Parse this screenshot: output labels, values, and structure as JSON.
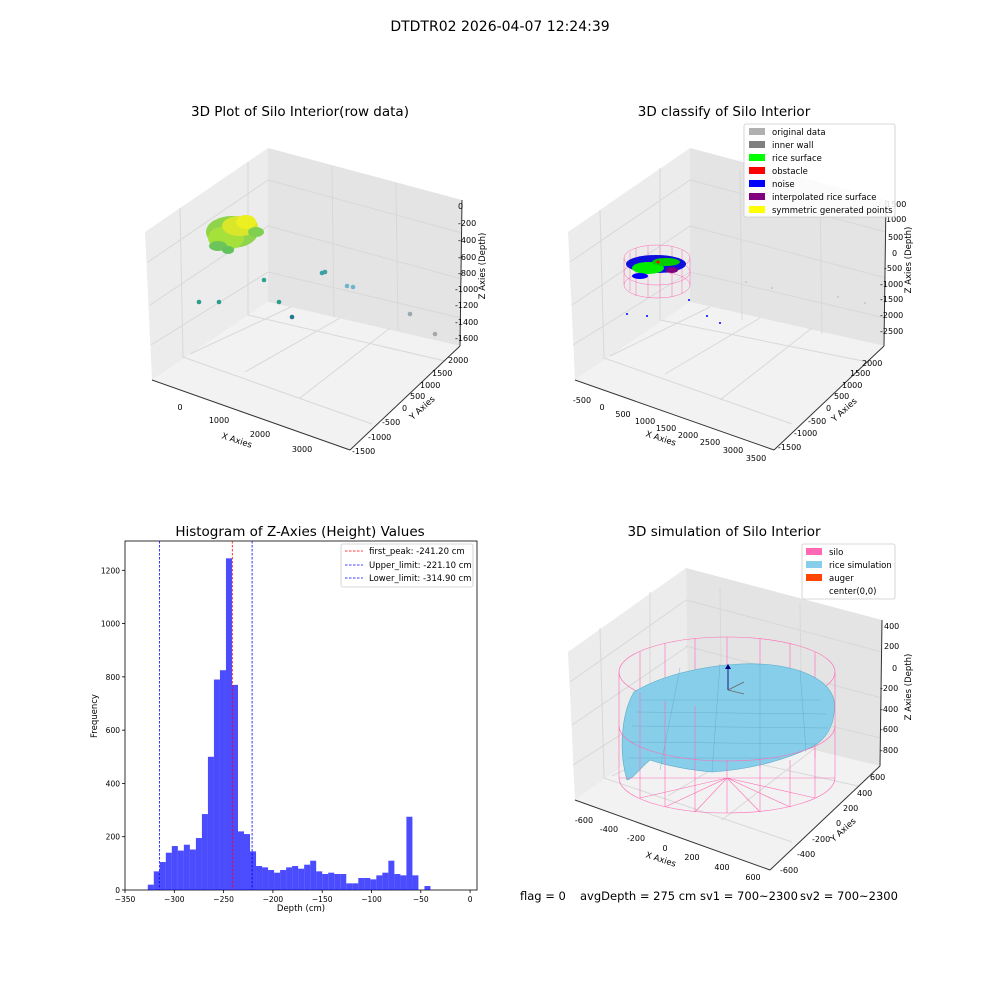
{
  "figure": {
    "suptitle": "DTDTR02 2026-04-07 12:24:39",
    "footer": {
      "flag": "flag = 0",
      "avg": "avgDepth = 275 cm",
      "sv1": "sv1 = 700~2300",
      "sv2": "sv2 = 700~2300"
    }
  },
  "panels": {
    "raw": {
      "title": "3D Plot of Silo Interior(row data)",
      "xlabel": "X Axies",
      "ylabel": "Y Axies",
      "zlabel": "Z Axies (Depth)",
      "xticks": [
        "0",
        "1000",
        "2000",
        "3000"
      ],
      "yticks": [
        "2000",
        "1500",
        "1000",
        "500",
        "0",
        "-500",
        "-1000",
        "-1500"
      ],
      "zticks": [
        "0",
        "-200",
        "-400",
        "-600",
        "-800",
        "-1000",
        "-1200",
        "-1400",
        "-1600"
      ]
    },
    "classify": {
      "title": "3D classify of Silo Interior",
      "xlabel": "X Axies",
      "ylabel": "Y Axies",
      "zlabel": "Z Axies (Depth)",
      "xticks": [
        "-500",
        "0",
        "500",
        "1000",
        "1500",
        "2000",
        "2500",
        "3000",
        "3500"
      ],
      "yticks": [
        "2000",
        "1500",
        "1000",
        "500",
        "0",
        "-500",
        "-1000",
        "-1500"
      ],
      "zticks": [
        "1500",
        "1000",
        "500",
        "0",
        "-500",
        "-1000",
        "-1500",
        "-2000",
        "-2500"
      ],
      "legend": [
        {
          "label": "original data",
          "color": "#b0b0b0"
        },
        {
          "label": "inner wall",
          "color": "#808080"
        },
        {
          "label": "rice surface",
          "color": "#00ff00"
        },
        {
          "label": "obstacle",
          "color": "#ff0000"
        },
        {
          "label": "noise",
          "color": "#0000ff"
        },
        {
          "label": "interpolated rice surface",
          "color": "#800080"
        },
        {
          "label": "symmetric generated points",
          "color": "#ffff00"
        }
      ]
    },
    "simulation": {
      "title": "3D simulation of Silo Interior",
      "xlabel": "X Axies",
      "ylabel": "Y Axies",
      "zlabel": "Z Axies (Depth)",
      "xticks": [
        "-600",
        "-400",
        "-200",
        "0",
        "200",
        "400",
        "600"
      ],
      "yticks": [
        "600",
        "400",
        "200",
        "0",
        "-200",
        "-400",
        "-600"
      ],
      "zticks": [
        "400",
        "200",
        "0",
        "-200",
        "-400",
        "-600",
        "-800"
      ],
      "legend": [
        {
          "label": "silo",
          "color": "#ff69b4"
        },
        {
          "label": "rice simulation",
          "color": "#87ceeb"
        },
        {
          "label": "auger",
          "color": "#ff4500"
        },
        {
          "label": "center(0,0)",
          "color": ""
        }
      ]
    }
  },
  "chart_data": {
    "type": "bar",
    "title": "Histogram of Z-Axies (Height) Values",
    "xlabel": "Depth (cm)",
    "ylabel": "Frequency",
    "xlim": [
      -350,
      7
    ],
    "ylim": [
      0,
      1310
    ],
    "xticks": [
      -350,
      -300,
      -250,
      -200,
      -150,
      -100,
      -50,
      0
    ],
    "yticks": [
      0,
      200,
      400,
      600,
      800,
      1000,
      1200
    ],
    "bar_color": "#0000ff",
    "bin_width": 6.1,
    "bin_start": -333,
    "values": [
      0,
      20,
      70,
      105,
      140,
      165,
      148,
      170,
      152,
      195,
      285,
      500,
      790,
      825,
      1245,
      770,
      220,
      210,
      145,
      90,
      85,
      75,
      65,
      75,
      85,
      90,
      80,
      95,
      110,
      70,
      60,
      65,
      60,
      60,
      25,
      25,
      45,
      45,
      40,
      55,
      65,
      110,
      60,
      55,
      275,
      55,
      0,
      15
    ],
    "lines": [
      {
        "label": "first_peak: -241.20 cm",
        "x": -241.2,
        "color": "#ff0000"
      },
      {
        "label": "Upper_limit: -221.10 cm",
        "x": -221.1,
        "color": "#0000ff"
      },
      {
        "label": "Lower_limit: -314.90 cm",
        "x": -314.9,
        "color": "#0000ff"
      }
    ],
    "legend_position": "top-right"
  }
}
